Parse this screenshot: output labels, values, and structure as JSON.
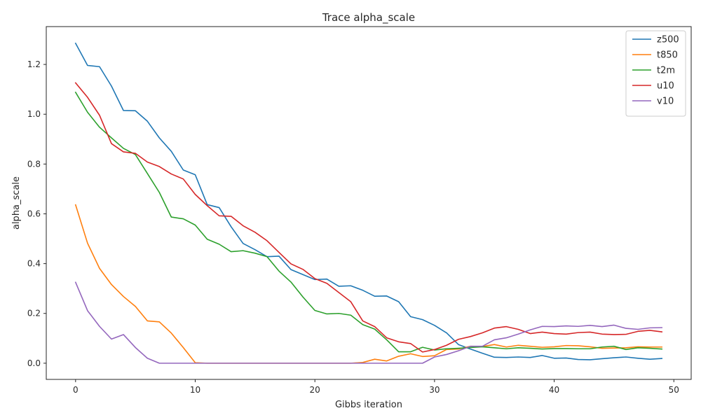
{
  "chart_data": {
    "type": "line",
    "title": "Trace alpha_scale",
    "xlabel": "Gibbs iteration",
    "ylabel": "alpha_scale",
    "xlim": [
      -2.45,
      51.45
    ],
    "ylim": [
      -0.065,
      1.352
    ],
    "xticks": [
      0,
      10,
      20,
      30,
      40,
      50
    ],
    "xtick_labels": [
      "0",
      "10",
      "20",
      "30",
      "40",
      "50"
    ],
    "yticks": [
      0.0,
      0.2,
      0.4,
      0.6,
      0.8,
      1.0,
      1.2
    ],
    "ytick_labels": [
      "0.0",
      "0.2",
      "0.4",
      "0.6",
      "0.8",
      "1.0",
      "1.2"
    ],
    "grid": false,
    "legend_position": "top-right",
    "x": [
      0,
      1,
      2,
      3,
      4,
      5,
      6,
      7,
      8,
      9,
      10,
      11,
      12,
      13,
      14,
      15,
      16,
      17,
      18,
      19,
      20,
      21,
      22,
      23,
      24,
      25,
      26,
      27,
      28,
      29,
      30,
      31,
      32,
      33,
      34,
      35,
      36,
      37,
      38,
      39,
      40,
      41,
      42,
      43,
      44,
      45,
      46,
      47,
      48,
      49
    ],
    "series": [
      {
        "name": "z500",
        "color": "#1f77b4",
        "values": [
          1.285,
          1.196,
          1.191,
          1.113,
          1.015,
          1.014,
          0.972,
          0.905,
          0.851,
          0.776,
          0.757,
          0.637,
          0.625,
          0.548,
          0.481,
          0.456,
          0.428,
          0.43,
          0.376,
          0.356,
          0.336,
          0.338,
          0.309,
          0.311,
          0.293,
          0.269,
          0.27,
          0.247,
          0.187,
          0.175,
          0.152,
          0.122,
          0.075,
          0.057,
          0.04,
          0.024,
          0.023,
          0.025,
          0.023,
          0.031,
          0.02,
          0.021,
          0.015,
          0.014,
          0.018,
          0.022,
          0.025,
          0.02,
          0.016,
          0.019
        ]
      },
      {
        "name": "t850",
        "color": "#ff7f0e",
        "values": [
          0.636,
          0.482,
          0.381,
          0.316,
          0.268,
          0.228,
          0.17,
          0.166,
          0.121,
          0.063,
          0.002,
          0.0,
          0.0,
          0.0,
          0.0,
          0.0,
          0.0,
          0.0,
          0.0,
          0.0,
          0.0,
          0.0,
          0.0,
          0.0,
          0.003,
          0.016,
          0.009,
          0.028,
          0.038,
          0.027,
          0.03,
          0.055,
          0.057,
          0.068,
          0.067,
          0.075,
          0.065,
          0.072,
          0.068,
          0.064,
          0.066,
          0.071,
          0.07,
          0.066,
          0.06,
          0.061,
          0.062,
          0.066,
          0.065,
          0.065
        ]
      },
      {
        "name": "t2m",
        "color": "#2ca02c",
        "values": [
          1.088,
          1.008,
          0.948,
          0.905,
          0.863,
          0.838,
          0.762,
          0.686,
          0.587,
          0.58,
          0.555,
          0.498,
          0.478,
          0.448,
          0.452,
          0.442,
          0.428,
          0.37,
          0.326,
          0.266,
          0.212,
          0.198,
          0.2,
          0.193,
          0.155,
          0.137,
          0.094,
          0.046,
          0.046,
          0.064,
          0.053,
          0.058,
          0.06,
          0.063,
          0.066,
          0.062,
          0.058,
          0.062,
          0.06,
          0.057,
          0.059,
          0.059,
          0.058,
          0.058,
          0.065,
          0.068,
          0.055,
          0.062,
          0.06,
          0.057
        ]
      },
      {
        "name": "u10",
        "color": "#d62728",
        "values": [
          1.126,
          1.068,
          0.996,
          0.882,
          0.849,
          0.843,
          0.808,
          0.79,
          0.76,
          0.74,
          0.678,
          0.633,
          0.592,
          0.59,
          0.552,
          0.526,
          0.492,
          0.445,
          0.399,
          0.377,
          0.34,
          0.321,
          0.284,
          0.247,
          0.17,
          0.147,
          0.102,
          0.086,
          0.079,
          0.045,
          0.055,
          0.072,
          0.096,
          0.107,
          0.122,
          0.141,
          0.147,
          0.136,
          0.119,
          0.125,
          0.119,
          0.117,
          0.123,
          0.125,
          0.117,
          0.115,
          0.116,
          0.128,
          0.132,
          0.126
        ]
      },
      {
        "name": "v10",
        "color": "#9467bd",
        "values": [
          0.325,
          0.211,
          0.148,
          0.097,
          0.115,
          0.063,
          0.02,
          0.0,
          0.0,
          0.0,
          0.0,
          0.0,
          0.0,
          0.0,
          0.0,
          0.0,
          0.0,
          0.0,
          0.0,
          0.0,
          0.0,
          0.0,
          0.0,
          0.0,
          0.0,
          0.0,
          0.0,
          0.0,
          0.0,
          0.0,
          0.025,
          0.035,
          0.05,
          0.068,
          0.068,
          0.094,
          0.102,
          0.117,
          0.134,
          0.148,
          0.147,
          0.15,
          0.148,
          0.152,
          0.147,
          0.153,
          0.14,
          0.136,
          0.142,
          0.143
        ]
      }
    ]
  }
}
